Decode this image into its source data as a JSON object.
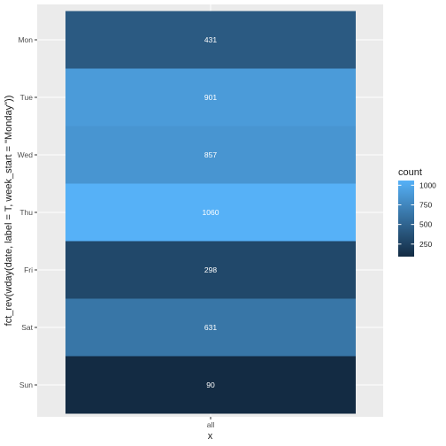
{
  "chart_data": {
    "type": "heatmap",
    "title": "",
    "xlabel": "x",
    "ylabel": "fct_rev(wday(date, label = T, week_start = \"Monday\"))",
    "x_categories": [
      "all"
    ],
    "y_categories": [
      "Mon",
      "Tue",
      "Wed",
      "Thu",
      "Fri",
      "Sat",
      "Sun"
    ],
    "values": [
      431,
      901,
      857,
      1060,
      298,
      631,
      90
    ],
    "legend": {
      "title": "count",
      "position": "right",
      "breaks": [
        1000,
        750,
        500,
        250
      ],
      "min": 90,
      "max": 1060,
      "low_color": "#132B43",
      "high_color": "#56B1F7"
    },
    "panel_background": "#EBEBEB",
    "grid": true
  }
}
